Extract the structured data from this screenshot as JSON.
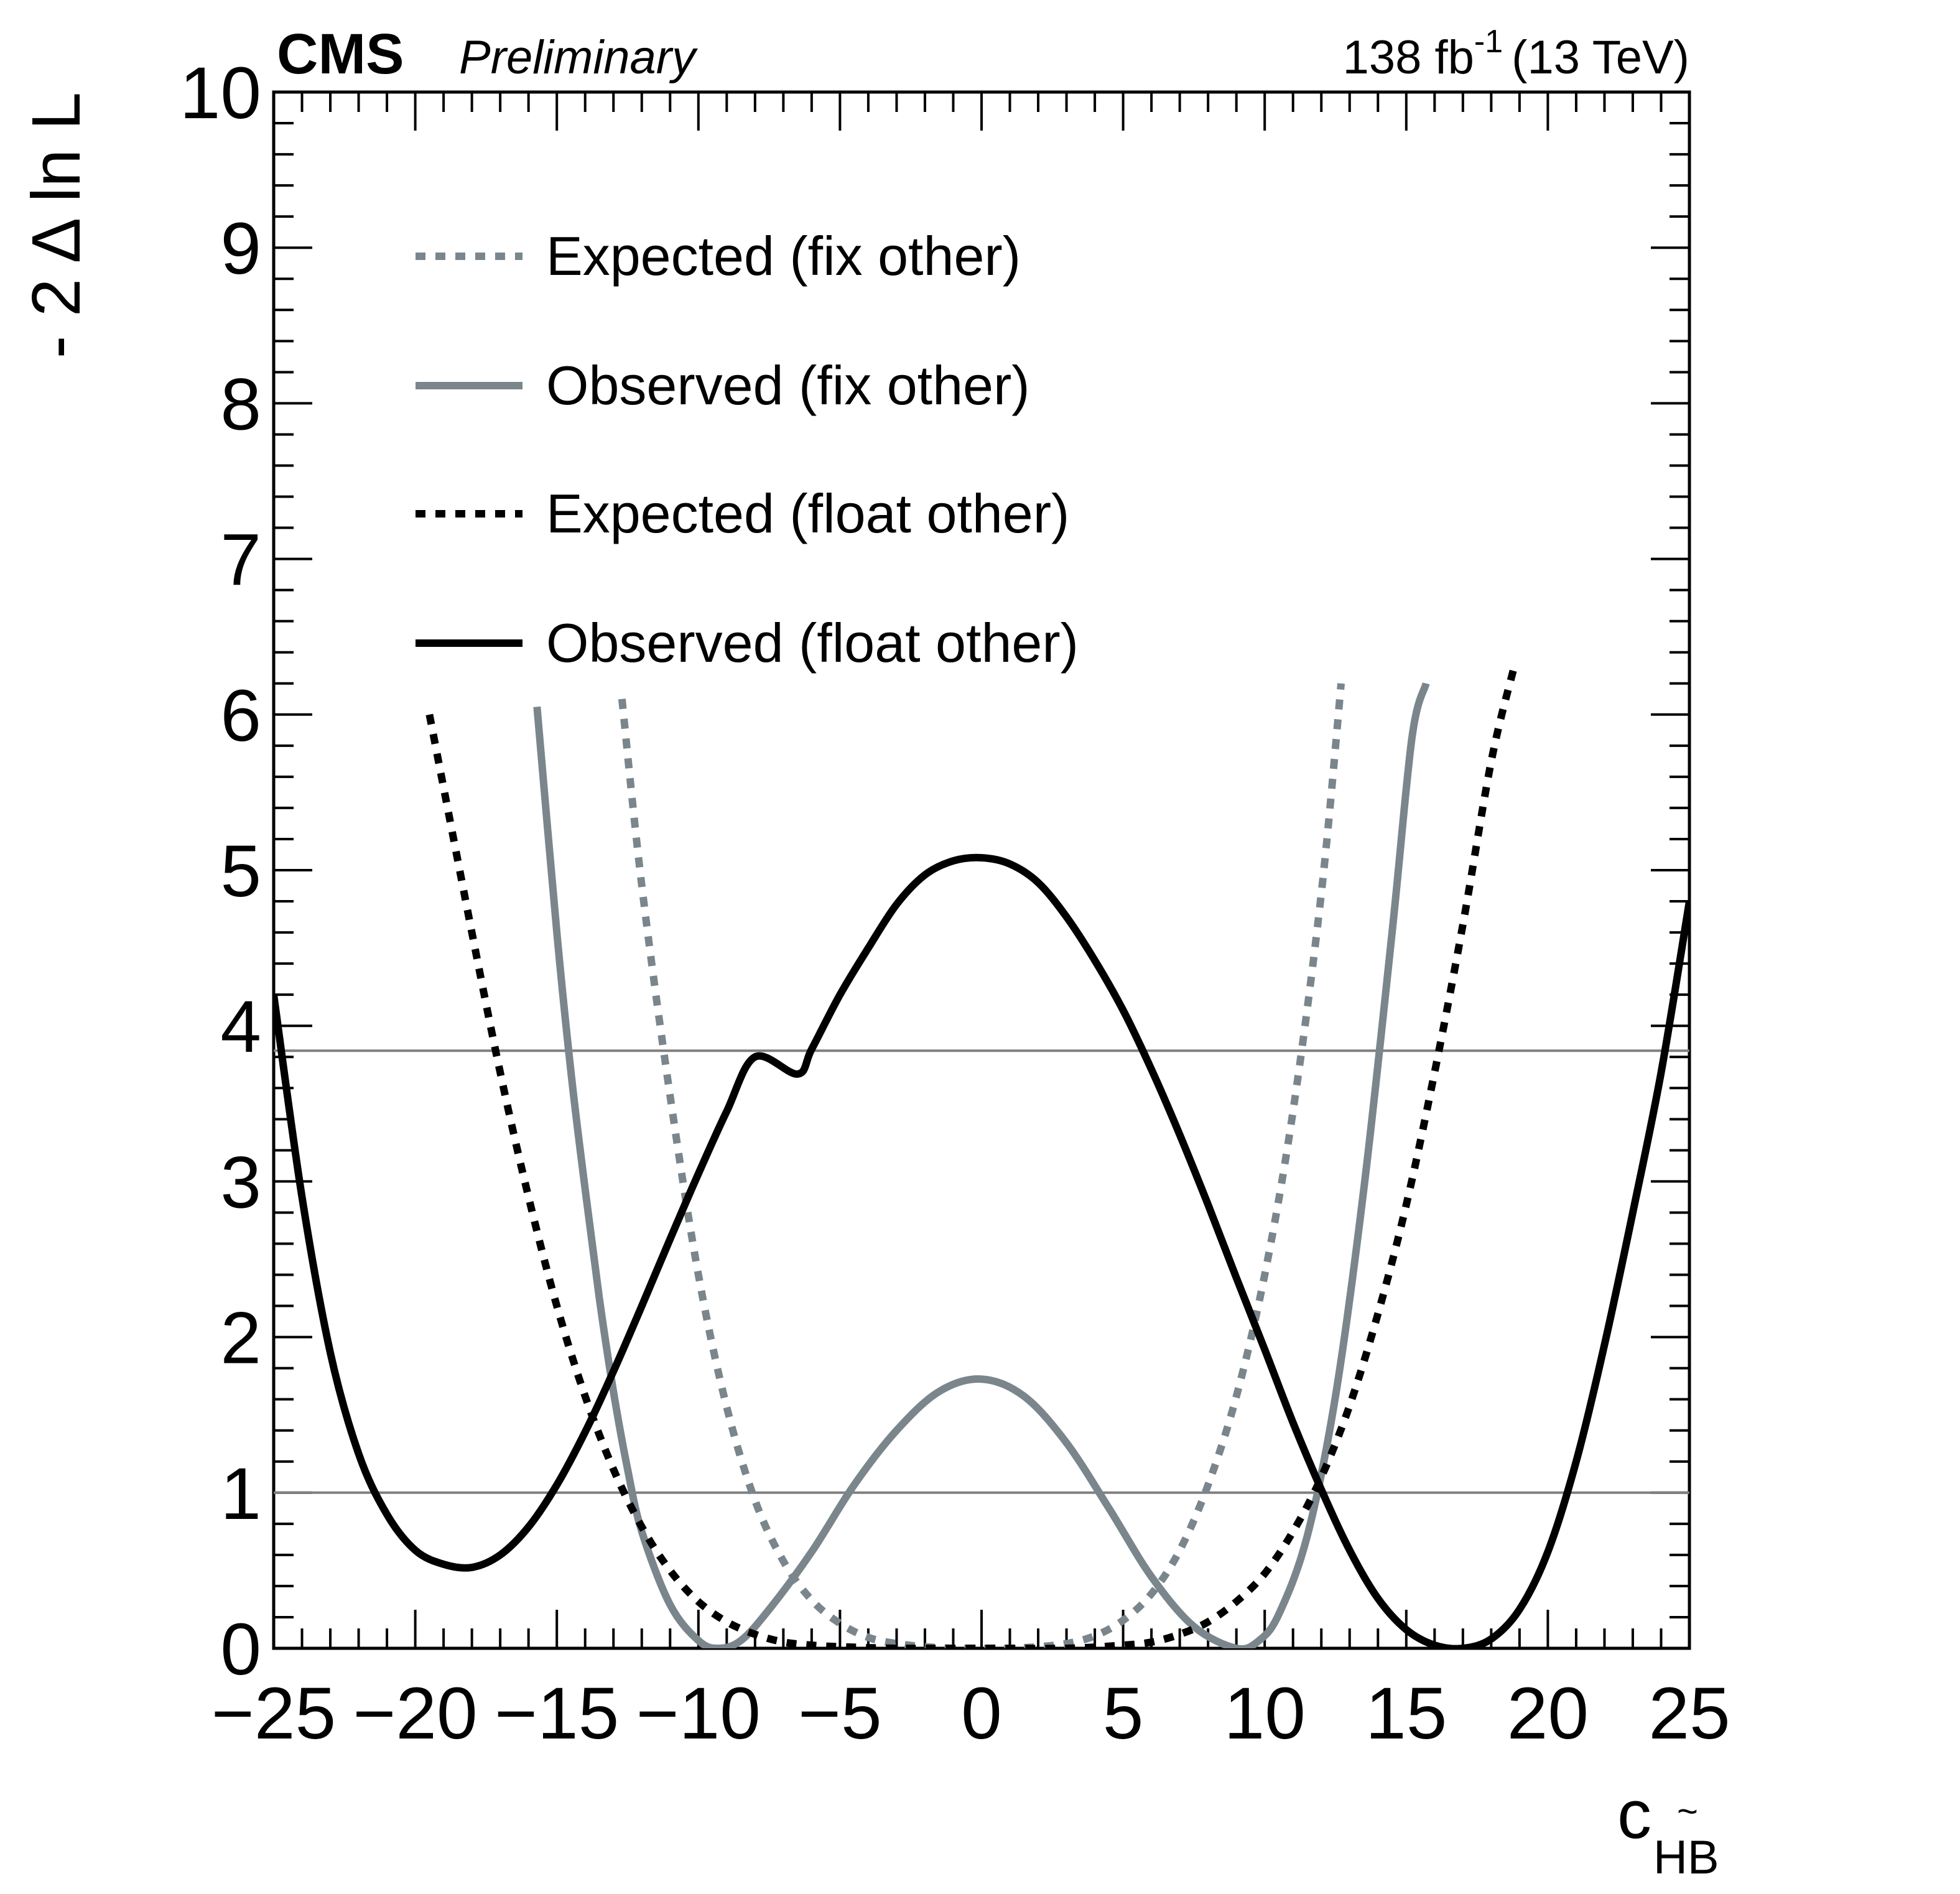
{
  "header": {
    "experiment": "CMS",
    "status": "Preliminary",
    "lumi_value": "138 fb",
    "lumi_exponent": "-1",
    "energy": "(13 TeV)"
  },
  "colors": {
    "gray": "#7a868c",
    "black": "#000000",
    "reference_line": "#808080"
  },
  "chart_data": {
    "type": "line",
    "xlabel": "c",
    "xlabel_subscript": "HB",
    "xlabel_subscript_accent": "~",
    "ylabel": "- 2 Δ ln L",
    "xlim": [
      -25,
      25
    ],
    "ylim": [
      0,
      10
    ],
    "grid": false,
    "legend_position": "top-left",
    "x_ticks": [
      {
        "value": -25,
        "label": "−25"
      },
      {
        "value": -20,
        "label": "−20"
      },
      {
        "value": -15,
        "label": "−15"
      },
      {
        "value": -10,
        "label": "−10"
      },
      {
        "value": -5,
        "label": "−5"
      },
      {
        "value": 0,
        "label": "0"
      },
      {
        "value": 5,
        "label": "5"
      },
      {
        "value": 10,
        "label": "10"
      },
      {
        "value": 15,
        "label": "15"
      },
      {
        "value": 20,
        "label": "20"
      },
      {
        "value": 25,
        "label": "25"
      }
    ],
    "y_ticks": [
      {
        "value": 0,
        "label": "0"
      },
      {
        "value": 1,
        "label": "1"
      },
      {
        "value": 2,
        "label": "2"
      },
      {
        "value": 3,
        "label": "3"
      },
      {
        "value": 4,
        "label": "4"
      },
      {
        "value": 5,
        "label": "5"
      },
      {
        "value": 6,
        "label": "6"
      },
      {
        "value": 7,
        "label": "7"
      },
      {
        "value": 8,
        "label": "8"
      },
      {
        "value": 9,
        "label": "9"
      },
      {
        "value": 10,
        "label": "10"
      }
    ],
    "reference_lines": [
      1.0,
      3.84
    ],
    "series": [
      {
        "name": "Expected (fix other)",
        "color": "#7a868c",
        "style": "dashed",
        "points": [
          [
            -12.7,
            6.1
          ],
          [
            -12,
            4.9
          ],
          [
            -11,
            3.55
          ],
          [
            -10,
            2.4
          ],
          [
            -9,
            1.55
          ],
          [
            -8,
            0.95
          ],
          [
            -7,
            0.56
          ],
          [
            -6,
            0.31
          ],
          [
            -5,
            0.16
          ],
          [
            -4,
            0.07
          ],
          [
            -3,
            0.03
          ],
          [
            -2,
            0.01
          ],
          [
            -1,
            0.0
          ],
          [
            0,
            0.0
          ],
          [
            1,
            0.0
          ],
          [
            2,
            0.01
          ],
          [
            3,
            0.03
          ],
          [
            4,
            0.08
          ],
          [
            5,
            0.18
          ],
          [
            6,
            0.35
          ],
          [
            7,
            0.63
          ],
          [
            8,
            1.05
          ],
          [
            9,
            1.62
          ],
          [
            10,
            2.4
          ],
          [
            11,
            3.45
          ],
          [
            12,
            4.85
          ],
          [
            12.7,
            6.2
          ]
        ]
      },
      {
        "name": "Observed (fix other)",
        "color": "#7a868c",
        "style": "solid",
        "points": [
          [
            -15.7,
            6.05
          ],
          [
            -15,
            4.6
          ],
          [
            -14.5,
            3.7
          ],
          [
            -14,
            2.95
          ],
          [
            -13.5,
            2.25
          ],
          [
            -13,
            1.65
          ],
          [
            -12.5,
            1.15
          ],
          [
            -12,
            0.75
          ],
          [
            -11,
            0.28
          ],
          [
            -10,
            0.05
          ],
          [
            -9.3,
            0.0
          ],
          [
            -8.5,
            0.05
          ],
          [
            -7.5,
            0.25
          ],
          [
            -6,
            0.62
          ],
          [
            -4.5,
            1.05
          ],
          [
            -3,
            1.4
          ],
          [
            -1.5,
            1.65
          ],
          [
            0,
            1.73
          ],
          [
            1.5,
            1.62
          ],
          [
            3,
            1.32
          ],
          [
            4.5,
            0.9
          ],
          [
            6,
            0.46
          ],
          [
            7.5,
            0.14
          ],
          [
            9,
            0.0
          ],
          [
            9.8,
            0.05
          ],
          [
            10.5,
            0.22
          ],
          [
            11.5,
            0.72
          ],
          [
            12.5,
            1.62
          ],
          [
            13.5,
            2.95
          ],
          [
            14.5,
            4.6
          ],
          [
            15.2,
            5.85
          ],
          [
            15.7,
            6.2
          ]
        ]
      },
      {
        "name": "Expected (float other)",
        "color": "#000000",
        "style": "dashed",
        "points": [
          [
            -19.5,
            6.0
          ],
          [
            -18,
            4.6
          ],
          [
            -17,
            3.7
          ],
          [
            -16,
            2.9
          ],
          [
            -15,
            2.2
          ],
          [
            -14,
            1.62
          ],
          [
            -13,
            1.15
          ],
          [
            -12,
            0.78
          ],
          [
            -11,
            0.5
          ],
          [
            -10,
            0.3
          ],
          [
            -9,
            0.17
          ],
          [
            -8,
            0.09
          ],
          [
            -7,
            0.04
          ],
          [
            -6,
            0.02
          ],
          [
            -5,
            0.01
          ],
          [
            -3,
            0.0
          ],
          [
            0,
            0.0
          ],
          [
            3,
            0.0
          ],
          [
            5,
            0.02
          ],
          [
            6,
            0.04
          ],
          [
            7,
            0.09
          ],
          [
            8,
            0.17
          ],
          [
            9,
            0.3
          ],
          [
            10,
            0.48
          ],
          [
            11,
            0.75
          ],
          [
            12,
            1.1
          ],
          [
            13,
            1.56
          ],
          [
            14,
            2.15
          ],
          [
            15,
            2.85
          ],
          [
            16,
            3.7
          ],
          [
            17,
            4.65
          ],
          [
            18,
            5.7
          ],
          [
            18.8,
            6.3
          ]
        ]
      },
      {
        "name": "Observed (float other)",
        "color": "#000000",
        "style": "solid",
        "points": [
          [
            -25,
            4.2
          ],
          [
            -24,
            2.9
          ],
          [
            -23,
            1.9
          ],
          [
            -22,
            1.25
          ],
          [
            -21,
            0.86
          ],
          [
            -20,
            0.63
          ],
          [
            -19,
            0.54
          ],
          [
            -18,
            0.52
          ],
          [
            -17,
            0.6
          ],
          [
            -16,
            0.78
          ],
          [
            -15,
            1.05
          ],
          [
            -14,
            1.39
          ],
          [
            -13,
            1.78
          ],
          [
            -12,
            2.2
          ],
          [
            -11,
            2.63
          ],
          [
            -10,
            3.05
          ],
          [
            -9,
            3.45
          ],
          [
            -8,
            3.8
          ],
          [
            -6.5,
            3.69
          ],
          [
            -6,
            3.85
          ],
          [
            -5,
            4.2
          ],
          [
            -4,
            4.5
          ],
          [
            -3,
            4.78
          ],
          [
            -2,
            4.97
          ],
          [
            -1,
            5.06
          ],
          [
            0,
            5.08
          ],
          [
            1,
            5.04
          ],
          [
            2,
            4.92
          ],
          [
            3,
            4.7
          ],
          [
            4,
            4.42
          ],
          [
            5,
            4.1
          ],
          [
            6,
            3.72
          ],
          [
            7,
            3.3
          ],
          [
            8,
            2.85
          ],
          [
            9,
            2.38
          ],
          [
            10,
            1.92
          ],
          [
            11,
            1.45
          ],
          [
            12,
            1.02
          ],
          [
            13,
            0.63
          ],
          [
            14,
            0.32
          ],
          [
            15,
            0.12
          ],
          [
            16,
            0.02
          ],
          [
            17,
            0.0
          ],
          [
            18,
            0.06
          ],
          [
            19,
            0.25
          ],
          [
            20,
            0.62
          ],
          [
            21,
            1.2
          ],
          [
            22,
            1.95
          ],
          [
            23,
            2.8
          ],
          [
            24,
            3.7
          ],
          [
            25,
            4.8
          ]
        ]
      }
    ]
  }
}
